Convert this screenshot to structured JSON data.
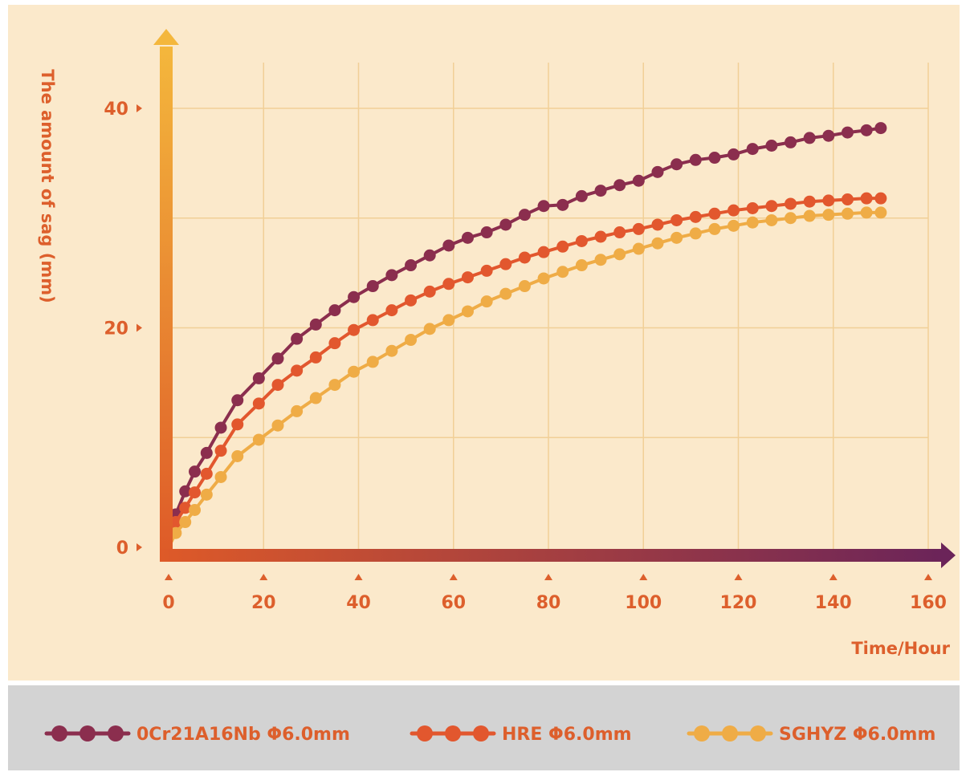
{
  "chart_data": {
    "type": "line",
    "title": "",
    "xlabel": "Time/Hour",
    "ylabel": "The amount of sag (mm)",
    "xlim": [
      0,
      160
    ],
    "ylim": [
      0,
      40
    ],
    "x_ticks": [
      "0",
      "20",
      "40",
      "60",
      "80",
      "100",
      "120",
      "140",
      "160"
    ],
    "y_ticks": [
      "0",
      "20",
      "40"
    ],
    "grid": true,
    "legend_position": "bottom",
    "colors": {
      "background": "#fbe9cb",
      "legend_background": "#d3d3d3",
      "label": "#dd5f2c",
      "grid": "#f1cf97",
      "axis_x_start": "#de5a28",
      "axis_x_end": "#6b2459",
      "axis_y_start": "#de5a28",
      "axis_y_end": "#f4b73c"
    },
    "x": [
      1.5,
      3.5,
      5.5,
      8,
      11,
      14.5,
      19,
      23,
      27,
      31,
      35,
      39,
      43,
      47,
      51,
      55,
      59,
      63,
      67,
      71,
      75,
      79,
      83,
      87,
      91,
      95,
      99,
      103,
      107,
      111,
      115,
      119,
      123,
      127,
      131,
      135,
      139,
      143,
      147,
      150
    ],
    "series": [
      {
        "name": "0Cr21A16Nb Φ6.0mm",
        "color": "#8b2e4e",
        "values": [
          3.0,
          5.1,
          6.9,
          8.6,
          10.9,
          13.4,
          15.4,
          17.2,
          19.0,
          20.3,
          21.6,
          22.8,
          23.8,
          24.8,
          25.7,
          26.6,
          27.5,
          28.2,
          28.7,
          29.4,
          30.3,
          31.1,
          31.2,
          32.0,
          32.5,
          33.0,
          33.4,
          34.2,
          34.9,
          35.3,
          35.5,
          35.8,
          36.3,
          36.6,
          36.9,
          37.3,
          37.5,
          37.8,
          38.0,
          38.2
        ]
      },
      {
        "name": "HRE Φ6.0mm",
        "color": "#e2572e",
        "values": [
          2.3,
          3.6,
          5.0,
          6.7,
          8.8,
          11.2,
          13.1,
          14.8,
          16.1,
          17.3,
          18.6,
          19.8,
          20.7,
          21.6,
          22.5,
          23.3,
          24.0,
          24.6,
          25.2,
          25.8,
          26.4,
          26.9,
          27.4,
          27.9,
          28.3,
          28.7,
          29.0,
          29.4,
          29.8,
          30.1,
          30.4,
          30.7,
          30.9,
          31.1,
          31.3,
          31.5,
          31.6,
          31.7,
          31.8,
          31.8
        ]
      },
      {
        "name": "SGHYZ Φ6.0mm",
        "color": "#efac46",
        "values": [
          1.3,
          2.3,
          3.4,
          4.8,
          6.4,
          8.3,
          9.8,
          11.1,
          12.4,
          13.6,
          14.8,
          16.0,
          16.9,
          17.9,
          18.9,
          19.9,
          20.7,
          21.5,
          22.4,
          23.1,
          23.8,
          24.5,
          25.1,
          25.7,
          26.2,
          26.7,
          27.2,
          27.7,
          28.2,
          28.6,
          29.0,
          29.3,
          29.6,
          29.8,
          30.0,
          30.2,
          30.3,
          30.4,
          30.5,
          30.5
        ]
      }
    ]
  }
}
